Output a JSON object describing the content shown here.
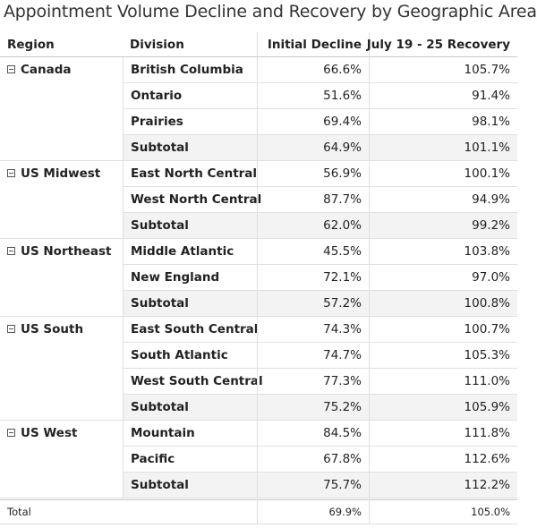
{
  "title": "Appointment Volume Decline and Recovery by Geographic Area",
  "columns": [
    "Region",
    "Division",
    "Initial Decline",
    "July 19 - 25 Recovery"
  ],
  "groups": [
    {
      "region": "Canada",
      "rows": [
        [
          "British Columbia",
          "66.6%",
          "105.7%"
        ],
        [
          "Ontario",
          "51.6%",
          "91.4%"
        ],
        [
          "Prairies",
          "69.4%",
          "98.1%"
        ],
        [
          "Subtotal",
          "64.9%",
          "101.1%"
        ]
      ]
    },
    {
      "region": "US Midwest",
      "rows": [
        [
          "East North Central",
          "56.9%",
          "100.1%"
        ],
        [
          "West North Central",
          "87.7%",
          "94.9%"
        ],
        [
          "Subtotal",
          "62.0%",
          "99.2%"
        ]
      ]
    },
    {
      "region": "US Northeast",
      "rows": [
        [
          "Middle Atlantic",
          "45.5%",
          "103.8%"
        ],
        [
          "New England",
          "72.1%",
          "97.0%"
        ],
        [
          "Subtotal",
          "57.2%",
          "100.8%"
        ]
      ]
    },
    {
      "region": "US South",
      "rows": [
        [
          "East South Central",
          "74.3%",
          "100.7%"
        ],
        [
          "South Atlantic",
          "74.7%",
          "105.3%"
        ],
        [
          "West South Central",
          "77.3%",
          "111.0%"
        ],
        [
          "Subtotal",
          "75.2%",
          "105.9%"
        ]
      ]
    },
    {
      "region": "US West",
      "rows": [
        [
          "Mountain",
          "84.5%",
          "111.8%"
        ],
        [
          "Pacific",
          "67.8%",
          "112.6%"
        ],
        [
          "Subtotal",
          "75.7%",
          "112.2%"
        ]
      ]
    }
  ],
  "total": [
    "Total",
    "69.9%",
    "105.0%"
  ]
}
